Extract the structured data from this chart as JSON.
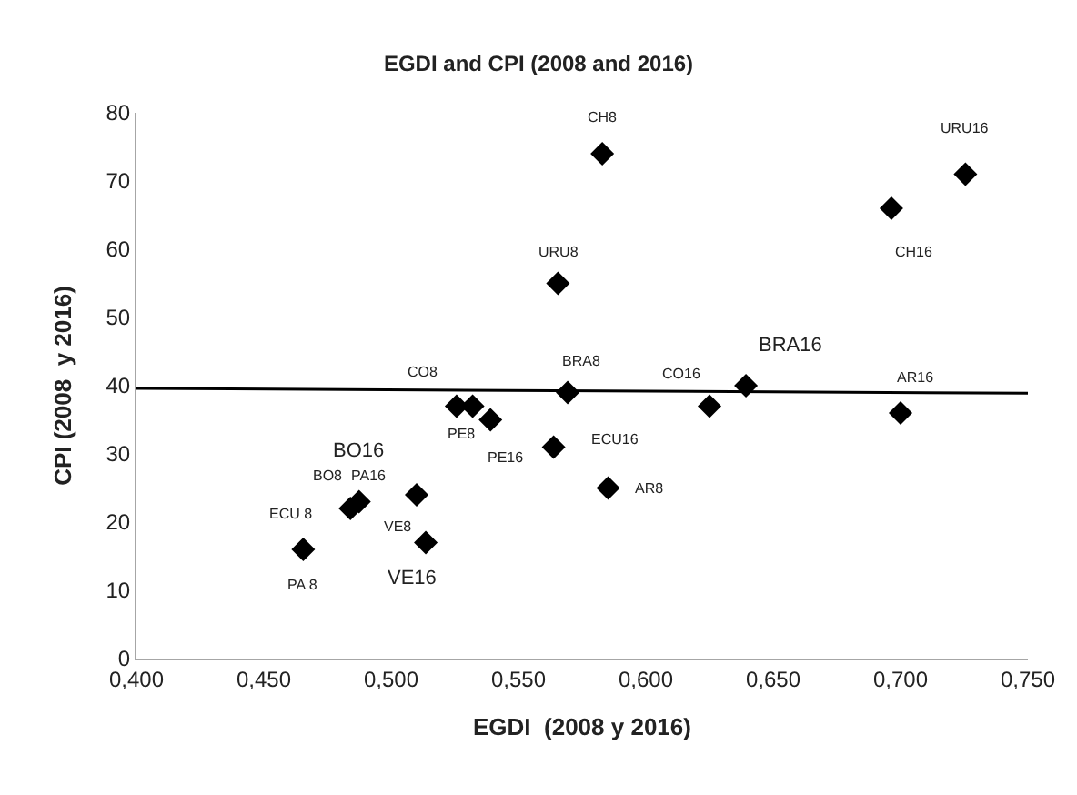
{
  "chart_data": {
    "type": "scatter",
    "title": "EGDI and CPI (2008 and 2016)",
    "xlabel": "EGDI  (2008 y 2016)",
    "ylabel": "CPI (2008  y 2016)",
    "series": [
      {
        "color": "#000000",
        "marker": "diamond",
        "x": [
          0.4655,
          0.484,
          0.4874,
          0.51,
          0.5136,
          0.5257,
          0.532,
          0.539,
          0.5655,
          0.5638,
          0.5693,
          0.5829,
          0.5852,
          0.625,
          0.6393,
          0.6964,
          0.7,
          0.7255
        ],
        "values": [
          16,
          22,
          23,
          24,
          17,
          37,
          37,
          35,
          55,
          31,
          39,
          74,
          25,
          37,
          40,
          66,
          36,
          71
        ]
      },
      {
        "type": "line",
        "color": "#000000",
        "x": [
          0.4,
          0.75
        ],
        "values": [
          39.6,
          38.9
        ]
      }
    ],
    "xlim": [
      0.4,
      0.75
    ],
    "xticks": [
      {
        "value": 0.4,
        "label": "0,400"
      },
      {
        "value": 0.45,
        "label": "0,450"
      },
      {
        "value": 0.5,
        "label": "0,500"
      },
      {
        "value": 0.55,
        "label": "0,550"
      },
      {
        "value": 0.6,
        "label": "0,600"
      },
      {
        "value": 0.65,
        "label": "0,650"
      },
      {
        "value": 0.7,
        "label": "0,700"
      },
      {
        "value": 0.75,
        "label": "0,750"
      }
    ],
    "ylim": [
      0,
      80
    ],
    "yticks": [
      0,
      10,
      20,
      30,
      40,
      50,
      60,
      70,
      80
    ],
    "annotations": [
      {
        "text": "PA 8",
        "x": 0.4655,
        "y": 16
      },
      {
        "text": "ECU 8",
        "x": 0.4655,
        "y": 16
      },
      {
        "text": "BO8",
        "x": 0.484,
        "y": 22
      },
      {
        "text": "BO16",
        "x": 0.4874,
        "y": 23
      },
      {
        "text": "PA16",
        "x": 0.51,
        "y": 24
      },
      {
        "text": "VE8",
        "x": 0.5136,
        "y": 17
      },
      {
        "text": "VE16",
        "x": 0.5136,
        "y": 17
      },
      {
        "text": "CO8",
        "x": 0.5257,
        "y": 37
      },
      {
        "text": "PE8",
        "x": 0.532,
        "y": 37
      },
      {
        "text": "PE16",
        "x": 0.539,
        "y": 35
      },
      {
        "text": "URU8",
        "x": 0.5655,
        "y": 55
      },
      {
        "text": "ECU16",
        "x": 0.5638,
        "y": 31
      },
      {
        "text": "BRA8",
        "x": 0.5693,
        "y": 39
      },
      {
        "text": "CH8",
        "x": 0.5829,
        "y": 74
      },
      {
        "text": "AR8",
        "x": 0.5852,
        "y": 25
      },
      {
        "text": "CO16",
        "x": 0.625,
        "y": 37
      },
      {
        "text": "BRA16",
        "x": 0.6393,
        "y": 40
      },
      {
        "text": "CH16",
        "x": 0.6964,
        "y": 66
      },
      {
        "text": "AR16",
        "x": 0.7,
        "y": 36
      },
      {
        "text": "URU16",
        "x": 0.7255,
        "y": 71
      }
    ]
  }
}
